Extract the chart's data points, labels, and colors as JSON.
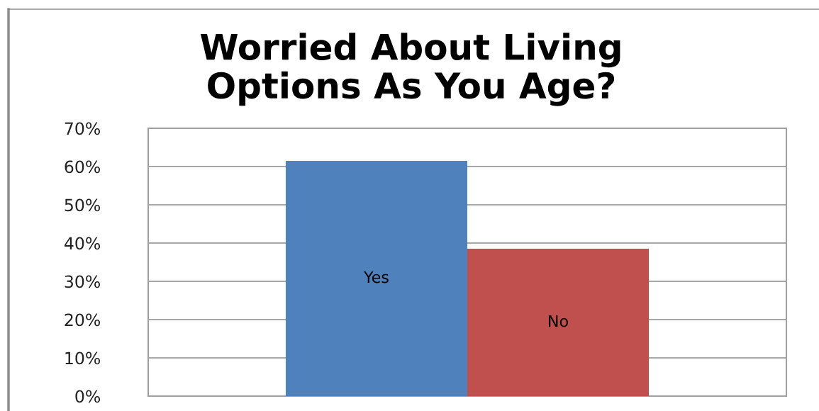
{
  "chart_data": {
    "type": "bar",
    "title": "Worried About Living\nOptions As You Age?",
    "categories": [
      null
    ],
    "series": [
      {
        "name": "Yes",
        "color": "#4f81bd",
        "values": [
          61.5
        ]
      },
      {
        "name": "No",
        "color": "#c0504d",
        "values": [
          38.5
        ]
      }
    ],
    "ylim": [
      0,
      70
    ],
    "yticks": [
      {
        "value": 0,
        "label": "0%"
      },
      {
        "value": 10,
        "label": "10%"
      },
      {
        "value": 20,
        "label": "20%"
      },
      {
        "value": 30,
        "label": "30%"
      },
      {
        "value": 40,
        "label": "40%"
      },
      {
        "value": 50,
        "label": "50%"
      },
      {
        "value": 60,
        "label": "60%"
      },
      {
        "value": 70,
        "label": "70%"
      }
    ],
    "grid": "y"
  }
}
